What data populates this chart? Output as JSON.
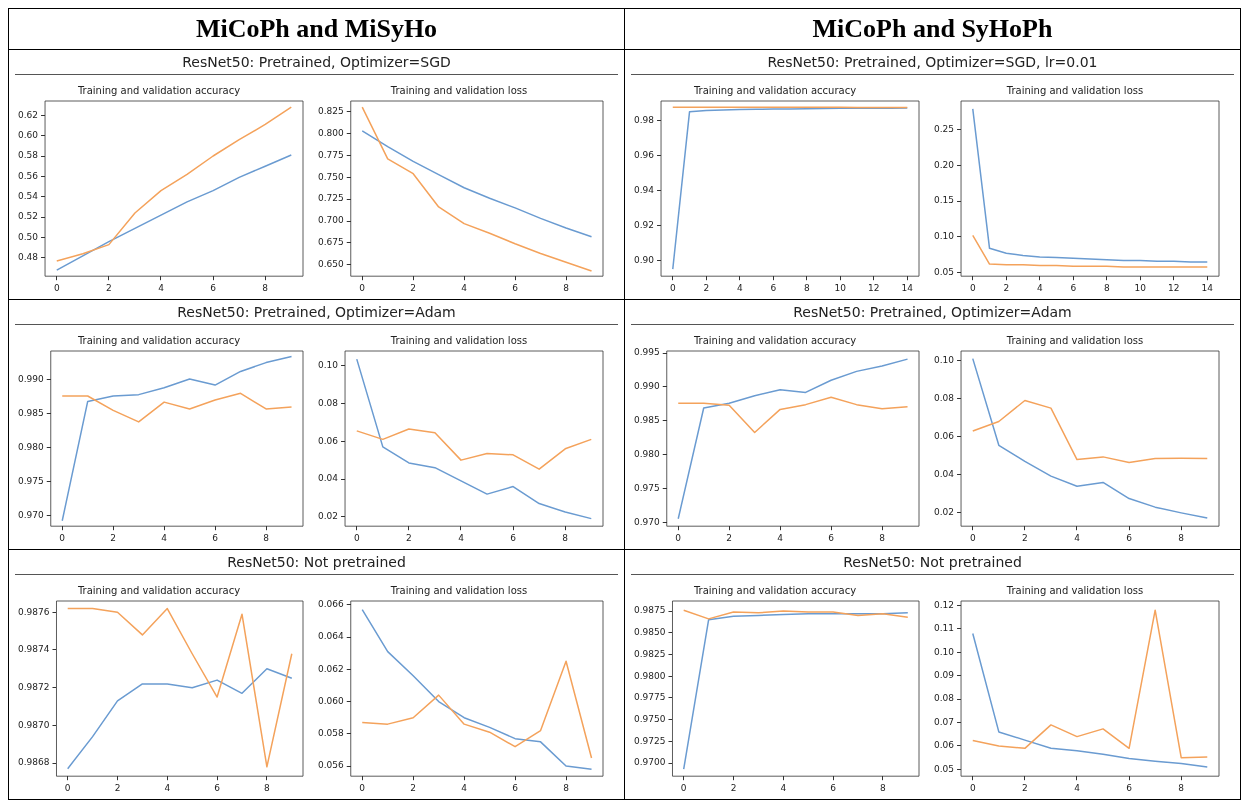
{
  "chart_data": [
    {
      "type": "line",
      "title": "Training and validation accuracy",
      "subtitle": "ResNet50: Pretrained, Optimizer=SGD",
      "annotations": [
        "MiCoPh and MiSyHo"
      ],
      "x": [
        0,
        1,
        2,
        3,
        4,
        5,
        6,
        7,
        8,
        9
      ],
      "xlim": [
        -0.45,
        9.45
      ],
      "xticks": [
        0,
        2,
        4,
        6,
        8
      ],
      "ylim": [
        0.462,
        0.634
      ],
      "yticks": [
        0.48,
        {
          "value": 0.5,
          "label": "0.50"
        },
        0.52,
        0.54,
        0.56,
        0.58,
        {
          "value": 0.6,
          "label": "0.60"
        },
        0.62
      ],
      "series": [
        {
          "color": "#6a9bd1",
          "values": [
            0.468,
            0.482,
            0.496,
            0.509,
            0.522,
            0.535,
            0.546,
            0.559,
            0.57,
            0.581
          ]
        },
        {
          "color": "#f4a25b",
          "values": [
            0.477,
            0.484,
            0.493,
            0.524,
            0.546,
            0.562,
            0.58,
            0.596,
            0.611,
            0.628
          ]
        }
      ]
    },
    {
      "type": "line",
      "title": "Training and validation loss",
      "x": [
        0,
        1,
        2,
        3,
        4,
        5,
        6,
        7,
        8,
        9
      ],
      "xlim": [
        -0.45,
        9.45
      ],
      "xticks": [
        0,
        2,
        4,
        6,
        8
      ],
      "ylim": [
        0.637,
        0.837
      ],
      "yticks": [
        {
          "value": 0.65,
          "label": "0.650"
        },
        0.675,
        {
          "value": 0.7,
          "label": "0.700"
        },
        0.725,
        {
          "value": 0.75,
          "label": "0.750"
        },
        0.775,
        {
          "value": 0.8,
          "label": "0.800"
        },
        0.825
      ],
      "series": [
        {
          "color": "#6a9bd1",
          "values": [
            0.803,
            0.785,
            0.768,
            0.753,
            0.738,
            0.726,
            0.715,
            0.703,
            0.692,
            0.682
          ]
        },
        {
          "color": "#f4a25b",
          "values": [
            0.83,
            0.771,
            0.754,
            0.716,
            0.697,
            0.686,
            0.674,
            0.663,
            0.653,
            0.643
          ]
        }
      ]
    },
    {
      "type": "line",
      "title": "Training and validation accuracy",
      "subtitle": "ResNet50: Pretrained, Optimizer=SGD, lr=0.01",
      "annotations": [
        "MiCoPh and SyHoPh"
      ],
      "x": [
        0,
        1,
        2,
        3,
        4,
        5,
        6,
        7,
        8,
        9,
        10,
        11,
        12,
        13,
        14
      ],
      "xlim": [
        -0.7,
        14.7
      ],
      "xticks": [
        0,
        2,
        4,
        6,
        8,
        10,
        12,
        14
      ],
      "ylim": [
        0.891,
        0.991
      ],
      "yticks": [
        {
          "value": 0.9,
          "label": "0.90"
        },
        0.92,
        0.94,
        0.96,
        0.98
      ],
      "series": [
        {
          "color": "#6a9bd1",
          "values": [
            0.895,
            0.9848,
            0.9856,
            0.9858,
            0.9862,
            0.9863,
            0.9864,
            0.9865,
            0.9866,
            0.9867,
            0.9868,
            0.9868,
            0.9869,
            0.9869,
            0.987
          ]
        },
        {
          "color": "#f4a25b",
          "values": [
            0.9875,
            0.9875,
            0.9875,
            0.9875,
            0.9875,
            0.9875,
            0.9874,
            0.9874,
            0.9874,
            0.9874,
            0.9874,
            0.9873,
            0.9873,
            0.9873,
            0.9873
          ]
        }
      ]
    },
    {
      "type": "line",
      "title": "Training and validation loss",
      "x": [
        0,
        1,
        2,
        3,
        4,
        5,
        6,
        7,
        8,
        9,
        10,
        11,
        12,
        13,
        14
      ],
      "xlim": [
        -0.7,
        14.7
      ],
      "xticks": [
        0,
        2,
        4,
        6,
        8,
        10,
        12,
        14
      ],
      "ylim": [
        0.045,
        0.29
      ],
      "yticks": [
        0.05,
        {
          "value": 0.1,
          "label": "0.10"
        },
        0.15,
        {
          "value": 0.2,
          "label": "0.20"
        },
        0.25
      ],
      "series": [
        {
          "color": "#6a9bd1",
          "values": [
            0.279,
            0.084,
            0.077,
            0.074,
            0.072,
            0.071,
            0.07,
            0.069,
            0.068,
            0.067,
            0.067,
            0.066,
            0.066,
            0.065,
            0.065
          ]
        },
        {
          "color": "#f4a25b",
          "values": [
            0.102,
            0.062,
            0.061,
            0.061,
            0.06,
            0.06,
            0.059,
            0.059,
            0.059,
            0.058,
            0.058,
            0.058,
            0.058,
            0.058,
            0.058
          ]
        }
      ]
    },
    {
      "type": "line",
      "title": "Training and validation accuracy",
      "subtitle": "ResNet50: Pretrained, Optimizer=Adam",
      "x": [
        0,
        1,
        2,
        3,
        4,
        5,
        6,
        7,
        8,
        9
      ],
      "xlim": [
        -0.45,
        9.45
      ],
      "xticks": [
        0,
        2,
        4,
        6,
        8
      ],
      "ylim": [
        0.9685,
        0.9942
      ],
      "yticks": [
        {
          "value": 0.97,
          "label": "0.970"
        },
        0.975,
        {
          "value": 0.98,
          "label": "0.980"
        },
        0.985,
        {
          "value": 0.99,
          "label": "0.990"
        }
      ],
      "series": [
        {
          "color": "#6a9bd1",
          "values": [
            0.9693,
            0.9868,
            0.9876,
            0.9878,
            0.9888,
            0.9901,
            0.9892,
            0.9912,
            0.9925,
            0.9934
          ]
        },
        {
          "color": "#f4a25b",
          "values": [
            0.9876,
            0.9876,
            0.9855,
            0.9838,
            0.9867,
            0.9857,
            0.987,
            0.988,
            0.9857,
            0.986
          ]
        }
      ]
    },
    {
      "type": "line",
      "title": "Training and validation loss",
      "x": [
        0,
        1,
        2,
        3,
        4,
        5,
        6,
        7,
        8,
        9
      ],
      "xlim": [
        -0.45,
        9.45
      ],
      "xticks": [
        0,
        2,
        4,
        6,
        8
      ],
      "ylim": [
        0.015,
        0.1078
      ],
      "yticks": [
        0.02,
        0.04,
        0.06,
        0.08,
        {
          "value": 0.1,
          "label": "0.10"
        }
      ],
      "series": [
        {
          "color": "#6a9bd1",
          "values": [
            0.1035,
            0.057,
            0.0485,
            0.046,
            0.039,
            0.032,
            0.036,
            0.027,
            0.0225,
            0.019
          ]
        },
        {
          "color": "#f4a25b",
          "values": [
            0.0655,
            0.061,
            0.0665,
            0.0645,
            0.05,
            0.0535,
            0.0528,
            0.0452,
            0.056,
            0.061
          ]
        }
      ]
    },
    {
      "type": "line",
      "title": "Training and validation accuracy",
      "subtitle": "ResNet50: Pretrained, Optimizer=Adam",
      "x": [
        0,
        1,
        2,
        3,
        4,
        5,
        6,
        7,
        8,
        9
      ],
      "xlim": [
        -0.45,
        9.45
      ],
      "xticks": [
        0,
        2,
        4,
        6,
        8
      ],
      "ylim": [
        0.9695,
        0.9953
      ],
      "yticks": [
        {
          "value": 0.97,
          "label": "0.970"
        },
        0.975,
        {
          "value": 0.98,
          "label": "0.980"
        },
        0.985,
        {
          "value": 0.99,
          "label": "0.990"
        },
        0.995
      ],
      "series": [
        {
          "color": "#6a9bd1",
          "values": [
            0.9706,
            0.9869,
            0.9876,
            0.9887,
            0.9896,
            0.9892,
            0.991,
            0.9923,
            0.9931,
            0.9941
          ]
        },
        {
          "color": "#f4a25b",
          "values": [
            0.9876,
            0.9876,
            0.9873,
            0.9833,
            0.9867,
            0.9874,
            0.9885,
            0.9874,
            0.9868,
            0.9871
          ]
        }
      ]
    },
    {
      "type": "line",
      "title": "Training and validation loss",
      "x": [
        0,
        1,
        2,
        3,
        4,
        5,
        6,
        7,
        8,
        9
      ],
      "xlim": [
        -0.45,
        9.45
      ],
      "xticks": [
        0,
        2,
        4,
        6,
        8
      ],
      "ylim": [
        0.013,
        0.105
      ],
      "yticks": [
        0.02,
        0.04,
        0.06,
        0.08,
        {
          "value": 0.1,
          "label": "0.10"
        }
      ],
      "series": [
        {
          "color": "#6a9bd1",
          "values": [
            0.101,
            0.0555,
            0.047,
            0.0393,
            0.034,
            0.036,
            0.0275,
            0.023,
            0.02,
            0.0173
          ]
        },
        {
          "color": "#f4a25b",
          "values": [
            0.063,
            0.068,
            0.079,
            0.075,
            0.048,
            0.0494,
            0.0465,
            0.0486,
            0.0487,
            0.0486
          ]
        }
      ]
    },
    {
      "type": "line",
      "title": "Training and validation accuracy",
      "subtitle": "ResNet50: Not pretrained",
      "x": [
        0,
        1,
        2,
        3,
        4,
        5,
        6,
        7,
        8,
        9
      ],
      "xlim": [
        -0.45,
        9.45
      ],
      "xticks": [
        0,
        2,
        4,
        6,
        8
      ],
      "ylim": [
        0.98673,
        0.98766
      ],
      "yticks": [
        0.9868,
        {
          "value": 0.987,
          "label": "0.9870"
        },
        0.9872,
        0.9874,
        0.9876
      ],
      "series": [
        {
          "color": "#6a9bd1",
          "values": [
            0.98677,
            0.98694,
            0.98713,
            0.98722,
            0.98722,
            0.9872,
            0.98724,
            0.98717,
            0.9873,
            0.98725
          ]
        },
        {
          "color": "#f4a25b",
          "values": [
            0.98762,
            0.98762,
            0.9876,
            0.98748,
            0.98762,
            0.98738,
            0.98715,
            0.98759,
            0.98678,
            0.98738
          ]
        }
      ]
    },
    {
      "type": "line",
      "title": "Training and validation loss",
      "x": [
        0,
        1,
        2,
        3,
        4,
        5,
        6,
        7,
        8,
        9
      ],
      "xlim": [
        -0.45,
        9.45
      ],
      "xticks": [
        0,
        2,
        4,
        6,
        8
      ],
      "ylim": [
        0.05537,
        0.06624
      ],
      "yticks": [
        0.056,
        0.058,
        {
          "value": 0.06,
          "label": "0.060"
        },
        0.062,
        0.064,
        0.066
      ],
      "series": [
        {
          "color": "#6a9bd1",
          "values": [
            0.0657,
            0.0631,
            0.0616,
            0.06,
            0.059,
            0.0584,
            0.0577,
            0.0575,
            0.056,
            0.0558
          ]
        },
        {
          "color": "#f4a25b",
          "values": [
            0.0587,
            0.0586,
            0.059,
            0.0604,
            0.0586,
            0.0581,
            0.0572,
            0.0582,
            0.0625,
            0.0565
          ]
        }
      ]
    },
    {
      "type": "line",
      "title": "Training and validation accuracy",
      "subtitle": "ResNet50: Not pretrained",
      "x": [
        0,
        1,
        2,
        3,
        4,
        5,
        6,
        7,
        8,
        9
      ],
      "xlim": [
        -0.45,
        9.45
      ],
      "xticks": [
        0,
        2,
        4,
        6,
        8
      ],
      "ylim": [
        0.96849,
        0.98866
      ],
      "yticks": [
        {
          "value": 0.97,
          "label": "0.9700"
        },
        0.9725,
        {
          "value": 0.975,
          "label": "0.9750"
        },
        0.9775,
        {
          "value": 0.98,
          "label": "0.9800"
        },
        0.9825,
        {
          "value": 0.985,
          "label": "0.9850"
        },
        0.9875
      ],
      "series": [
        {
          "color": "#6a9bd1",
          "values": [
            0.9693,
            0.9865,
            0.9869,
            0.987,
            0.9871,
            0.9872,
            0.9872,
            0.9872,
            0.9872,
            0.9873
          ]
        },
        {
          "color": "#f4a25b",
          "values": [
            0.9876,
            0.9866,
            0.9874,
            0.9873,
            0.9875,
            0.9874,
            0.9874,
            0.987,
            0.9872,
            0.9868
          ]
        }
      ]
    },
    {
      "type": "line",
      "title": "Training and validation loss",
      "x": [
        0,
        1,
        2,
        3,
        4,
        5,
        6,
        7,
        8,
        9
      ],
      "xlim": [
        -0.45,
        9.45
      ],
      "xticks": [
        0,
        2,
        4,
        6,
        8
      ],
      "ylim": [
        0.0471,
        0.1219
      ],
      "yticks": [
        0.05,
        0.06,
        0.07,
        0.08,
        0.09,
        {
          "value": 0.1,
          "label": "0.10"
        },
        0.11,
        0.12
      ],
      "series": [
        {
          "color": "#6a9bd1",
          "values": [
            0.108,
            0.066,
            0.0625,
            0.059,
            0.058,
            0.0565,
            0.0547,
            0.0535,
            0.0525,
            0.051
          ]
        },
        {
          "color": "#f4a25b",
          "values": [
            0.0623,
            0.06,
            0.059,
            0.069,
            0.064,
            0.0673,
            0.059,
            0.118,
            0.055,
            0.0553
          ]
        }
      ]
    }
  ]
}
